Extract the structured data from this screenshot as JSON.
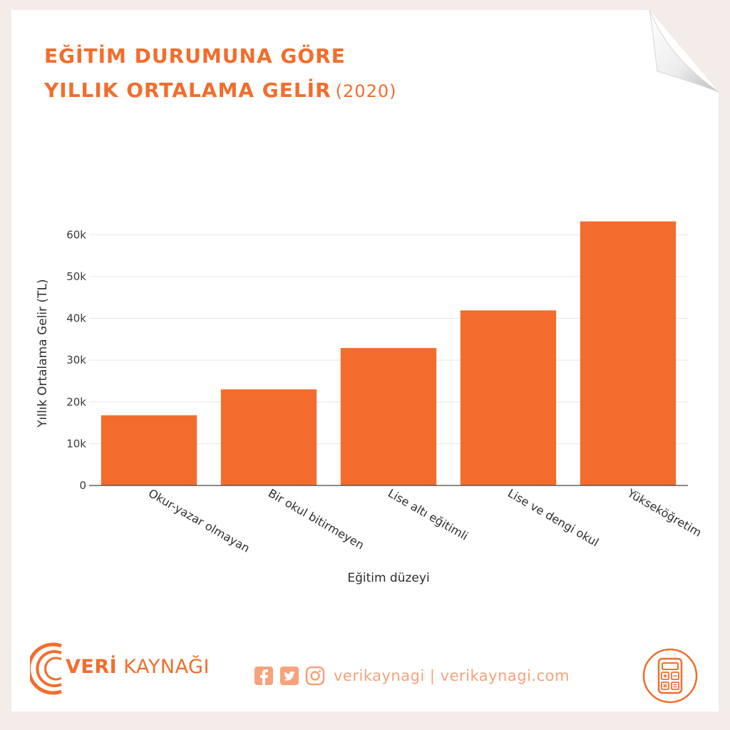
{
  "title": {
    "line1": "EĞİTİM DURUMUNA GÖRE",
    "line2": "YILLIK ORTALAMA GELİR",
    "year": "(2020)"
  },
  "chart_data": {
    "type": "bar",
    "categories": [
      "Okur-yazar olmayan",
      "Bir okul bitirmeyen",
      "Lise altı eğitimli",
      "Lise ve dengi okul",
      "Yükseköğretim"
    ],
    "values": [
      16800,
      23000,
      32900,
      41900,
      63200
    ],
    "xlabel": "Eğitim düzeyi",
    "ylabel": "Yıllık Ortalama Gelir (TL)",
    "ylim": [
      0,
      65000
    ],
    "yticks": [
      0,
      10000,
      20000,
      30000,
      40000,
      50000,
      60000
    ],
    "ytick_labels": [
      "0",
      "10k",
      "20k",
      "30k",
      "40k",
      "50k",
      "60k"
    ],
    "bar_color": "#f26d2d",
    "grid": true,
    "legend": "none"
  },
  "footer": {
    "brand_bold": "VERİ",
    "brand_rest": " KAYNAĞI",
    "social_text": "verikaynagi | verikaynagi.com"
  },
  "colors": {
    "accent": "#f26d2d",
    "accent_light": "#f6a27a"
  },
  "icons": [
    "facebook-icon",
    "twitter-icon",
    "instagram-icon",
    "calculator-icon",
    "logo-arcs-icon"
  ]
}
